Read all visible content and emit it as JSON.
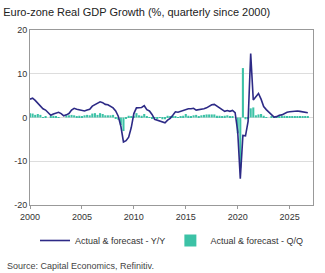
{
  "chart_data": {
    "type": "line",
    "title": "Euro-zone Real GDP Growth (%, quarterly since 2000)",
    "source": "Source: Capital Economics, Refinitiv.",
    "x": [
      2000,
      2000.25,
      2000.5,
      2000.75,
      2001,
      2001.25,
      2001.5,
      2001.75,
      2002,
      2002.25,
      2002.5,
      2002.75,
      2003,
      2003.25,
      2003.5,
      2003.75,
      2004,
      2004.25,
      2004.5,
      2004.75,
      2005,
      2005.25,
      2005.5,
      2005.75,
      2006,
      2006.25,
      2006.5,
      2006.75,
      2007,
      2007.25,
      2007.5,
      2007.75,
      2008,
      2008.25,
      2008.5,
      2008.75,
      2009,
      2009.25,
      2009.5,
      2009.75,
      2010,
      2010.25,
      2010.5,
      2010.75,
      2011,
      2011.25,
      2011.5,
      2011.75,
      2012,
      2012.25,
      2012.5,
      2012.75,
      2013,
      2013.25,
      2013.5,
      2013.75,
      2014,
      2014.25,
      2014.5,
      2014.75,
      2015,
      2015.25,
      2015.5,
      2015.75,
      2016,
      2016.25,
      2016.5,
      2016.75,
      2017,
      2017.25,
      2017.5,
      2017.75,
      2018,
      2018.25,
      2018.5,
      2018.75,
      2019,
      2019.25,
      2019.5,
      2019.75,
      2020,
      2020.25,
      2020.5,
      2020.75,
      2021,
      2021.25,
      2021.5,
      2021.75,
      2022,
      2022.25,
      2022.5,
      2022.75,
      2023,
      2023.25,
      2023.5,
      2023.75,
      2024,
      2024.25,
      2024.5,
      2024.75,
      2025,
      2025.25,
      2025.5,
      2025.75,
      2026,
      2026.25,
      2026.5,
      2026.75
    ],
    "series": [
      {
        "name": "Actual & forecast - Y/Y",
        "type": "line",
        "color": "#2d2a86",
        "values": [
          4.2,
          4.4,
          3.9,
          3.3,
          2.6,
          2.0,
          1.7,
          1.0,
          0.5,
          0.8,
          1.0,
          1.2,
          0.9,
          0.4,
          0.6,
          0.9,
          1.7,
          2.1,
          1.9,
          1.8,
          1.6,
          1.5,
          1.7,
          1.9,
          2.6,
          3.0,
          3.2,
          3.6,
          3.4,
          3.0,
          2.9,
          2.5,
          2.2,
          1.5,
          0.3,
          -2.0,
          -5.6,
          -5.3,
          -4.5,
          -2.3,
          0.9,
          2.2,
          2.3,
          2.3,
          2.7,
          1.8,
          1.5,
          0.7,
          -0.4,
          -0.6,
          -0.9,
          -1.0,
          -1.2,
          -0.6,
          -0.2,
          0.5,
          1.3,
          1.2,
          1.4,
          1.5,
          1.8,
          2.0,
          2.0,
          2.1,
          1.7,
          1.8,
          1.8,
          2.0,
          2.2,
          2.6,
          2.9,
          3.0,
          2.6,
          2.3,
          1.8,
          1.4,
          1.6,
          1.4,
          1.6,
          1.1,
          -3.2,
          -14.0,
          -4.1,
          -4.2,
          -0.9,
          14.6,
          4.0,
          4.8,
          5.5,
          4.2,
          2.5,
          1.8,
          1.2,
          0.5,
          0.1,
          0.2,
          0.5,
          0.6,
          0.9,
          1.2,
          1.3,
          1.4,
          1.5,
          1.5,
          1.4,
          1.3,
          1.2,
          1.1
        ]
      },
      {
        "name": "Actual & forecast - Q/Q",
        "type": "bar",
        "color": "#3cc2a6",
        "values": [
          1.0,
          0.9,
          0.6,
          0.8,
          0.6,
          0.1,
          0.2,
          0.0,
          0.3,
          0.4,
          0.3,
          0.1,
          0.0,
          0.0,
          0.5,
          0.5,
          0.6,
          0.5,
          0.3,
          0.4,
          0.3,
          0.5,
          0.6,
          0.5,
          0.9,
          1.0,
          0.6,
          1.0,
          0.8,
          0.5,
          0.5,
          0.5,
          0.6,
          -0.3,
          -0.5,
          -1.7,
          -3.1,
          -0.2,
          0.4,
          0.3,
          0.4,
          1.0,
          0.5,
          0.4,
          0.8,
          0.2,
          0.1,
          -0.3,
          -0.1,
          -0.3,
          -0.1,
          -0.4,
          -0.4,
          0.4,
          0.3,
          0.3,
          0.3,
          0.1,
          0.3,
          0.4,
          0.8,
          0.4,
          0.3,
          0.5,
          0.6,
          0.3,
          0.5,
          0.6,
          0.7,
          0.7,
          0.7,
          0.7,
          0.4,
          0.4,
          0.2,
          0.4,
          0.5,
          0.2,
          0.3,
          0.0,
          -3.6,
          -11.5,
          11.3,
          -0.4,
          -0.2,
          2.1,
          2.3,
          0.5,
          0.7,
          0.8,
          0.4,
          -0.1,
          0.0,
          0.2,
          -0.1,
          0.1,
          0.3,
          0.2,
          0.4,
          0.2,
          0.3,
          0.3,
          0.3,
          0.3,
          0.3,
          0.3,
          0.3,
          0.3
        ]
      }
    ],
    "xlim": [
      2000,
      2027.25
    ],
    "xticks": [
      2000,
      2005,
      2010,
      2015,
      2020,
      2025
    ],
    "ylim": [
      -20,
      20
    ],
    "yticks": [
      -20,
      -10,
      0,
      10,
      20
    ],
    "grid": true,
    "legend": "bottom"
  }
}
